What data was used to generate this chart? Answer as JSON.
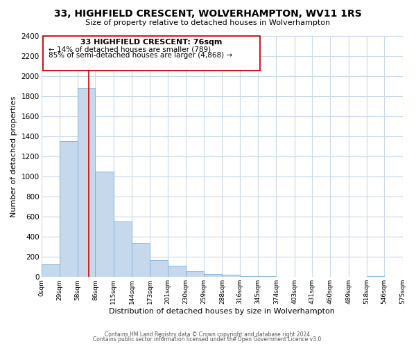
{
  "title": "33, HIGHFIELD CRESCENT, WOLVERHAMPTON, WV11 1RS",
  "subtitle": "Size of property relative to detached houses in Wolverhampton",
  "xlabel": "Distribution of detached houses by size in Wolverhampton",
  "ylabel": "Number of detached properties",
  "footer_line1": "Contains HM Land Registry data © Crown copyright and database right 2024.",
  "footer_line2": "Contains public sector information licensed under the Open Government Licence v3.0.",
  "annotation_title": "33 HIGHFIELD CRESCENT: 76sqm",
  "annotation_line2": "← 14% of detached houses are smaller (789)",
  "annotation_line3": "85% of semi-detached houses are larger (4,868) →",
  "bar_left_edges": [
    0,
    29,
    58,
    86,
    115,
    144,
    173,
    201,
    230,
    259,
    288,
    316,
    345,
    374,
    403,
    431,
    460,
    489,
    518,
    546
  ],
  "bar_widths": [
    29,
    29,
    28,
    29,
    29,
    29,
    28,
    29,
    29,
    29,
    28,
    29,
    29,
    29,
    28,
    29,
    29,
    29,
    28,
    29
  ],
  "bar_heights": [
    125,
    1350,
    1880,
    1050,
    550,
    340,
    165,
    110,
    60,
    30,
    20,
    10,
    10,
    5,
    2,
    2,
    0,
    0,
    10,
    0
  ],
  "bar_color": "#c6d9ec",
  "bar_edge_color": "#7aafd4",
  "xlim": [
    0,
    575
  ],
  "ylim": [
    0,
    2400
  ],
  "yticks": [
    0,
    200,
    400,
    600,
    800,
    1000,
    1200,
    1400,
    1600,
    1800,
    2000,
    2200,
    2400
  ],
  "xtick_labels": [
    "0sqm",
    "29sqm",
    "58sqm",
    "86sqm",
    "115sqm",
    "144sqm",
    "173sqm",
    "201sqm",
    "230sqm",
    "259sqm",
    "288sqm",
    "316sqm",
    "345sqm",
    "374sqm",
    "403sqm",
    "431sqm",
    "460sqm",
    "489sqm",
    "518sqm",
    "546sqm",
    "575sqm"
  ],
  "xtick_positions": [
    0,
    29,
    58,
    86,
    115,
    144,
    173,
    201,
    230,
    259,
    288,
    316,
    345,
    374,
    403,
    431,
    460,
    489,
    518,
    546,
    575
  ],
  "property_x": 76,
  "vline_color": "#cc0000",
  "grid_color": "#c8d8e8",
  "background_color": "#ffffff"
}
